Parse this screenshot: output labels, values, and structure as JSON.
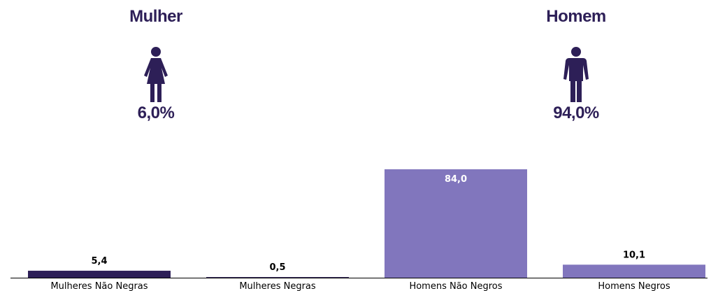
{
  "summary": {
    "female": {
      "label": "Mulher",
      "percent": "6,0%",
      "icon": "woman-icon"
    },
    "male": {
      "label": "Homem",
      "percent": "94,0%",
      "icon": "man-icon"
    }
  },
  "colors": {
    "dark_purple": "#2d1f57",
    "light_purple": "#8176bd"
  },
  "chart_data": {
    "type": "bar",
    "categories": [
      "Mulheres Não Negras",
      "Mulheres Negras",
      "Homens Não Negros",
      "Homens Negros"
    ],
    "values": [
      5.4,
      0.5,
      84.0,
      10.1
    ],
    "value_labels": [
      "5,4",
      "0,5",
      "84,0",
      "10,1"
    ],
    "bar_colors": [
      "#2d1f57",
      "#2d1f57",
      "#8176bd",
      "#8176bd"
    ],
    "title": "",
    "xlabel": "",
    "ylabel": "",
    "ylim": [
      0,
      84
    ],
    "grid": false,
    "legend": "none"
  }
}
